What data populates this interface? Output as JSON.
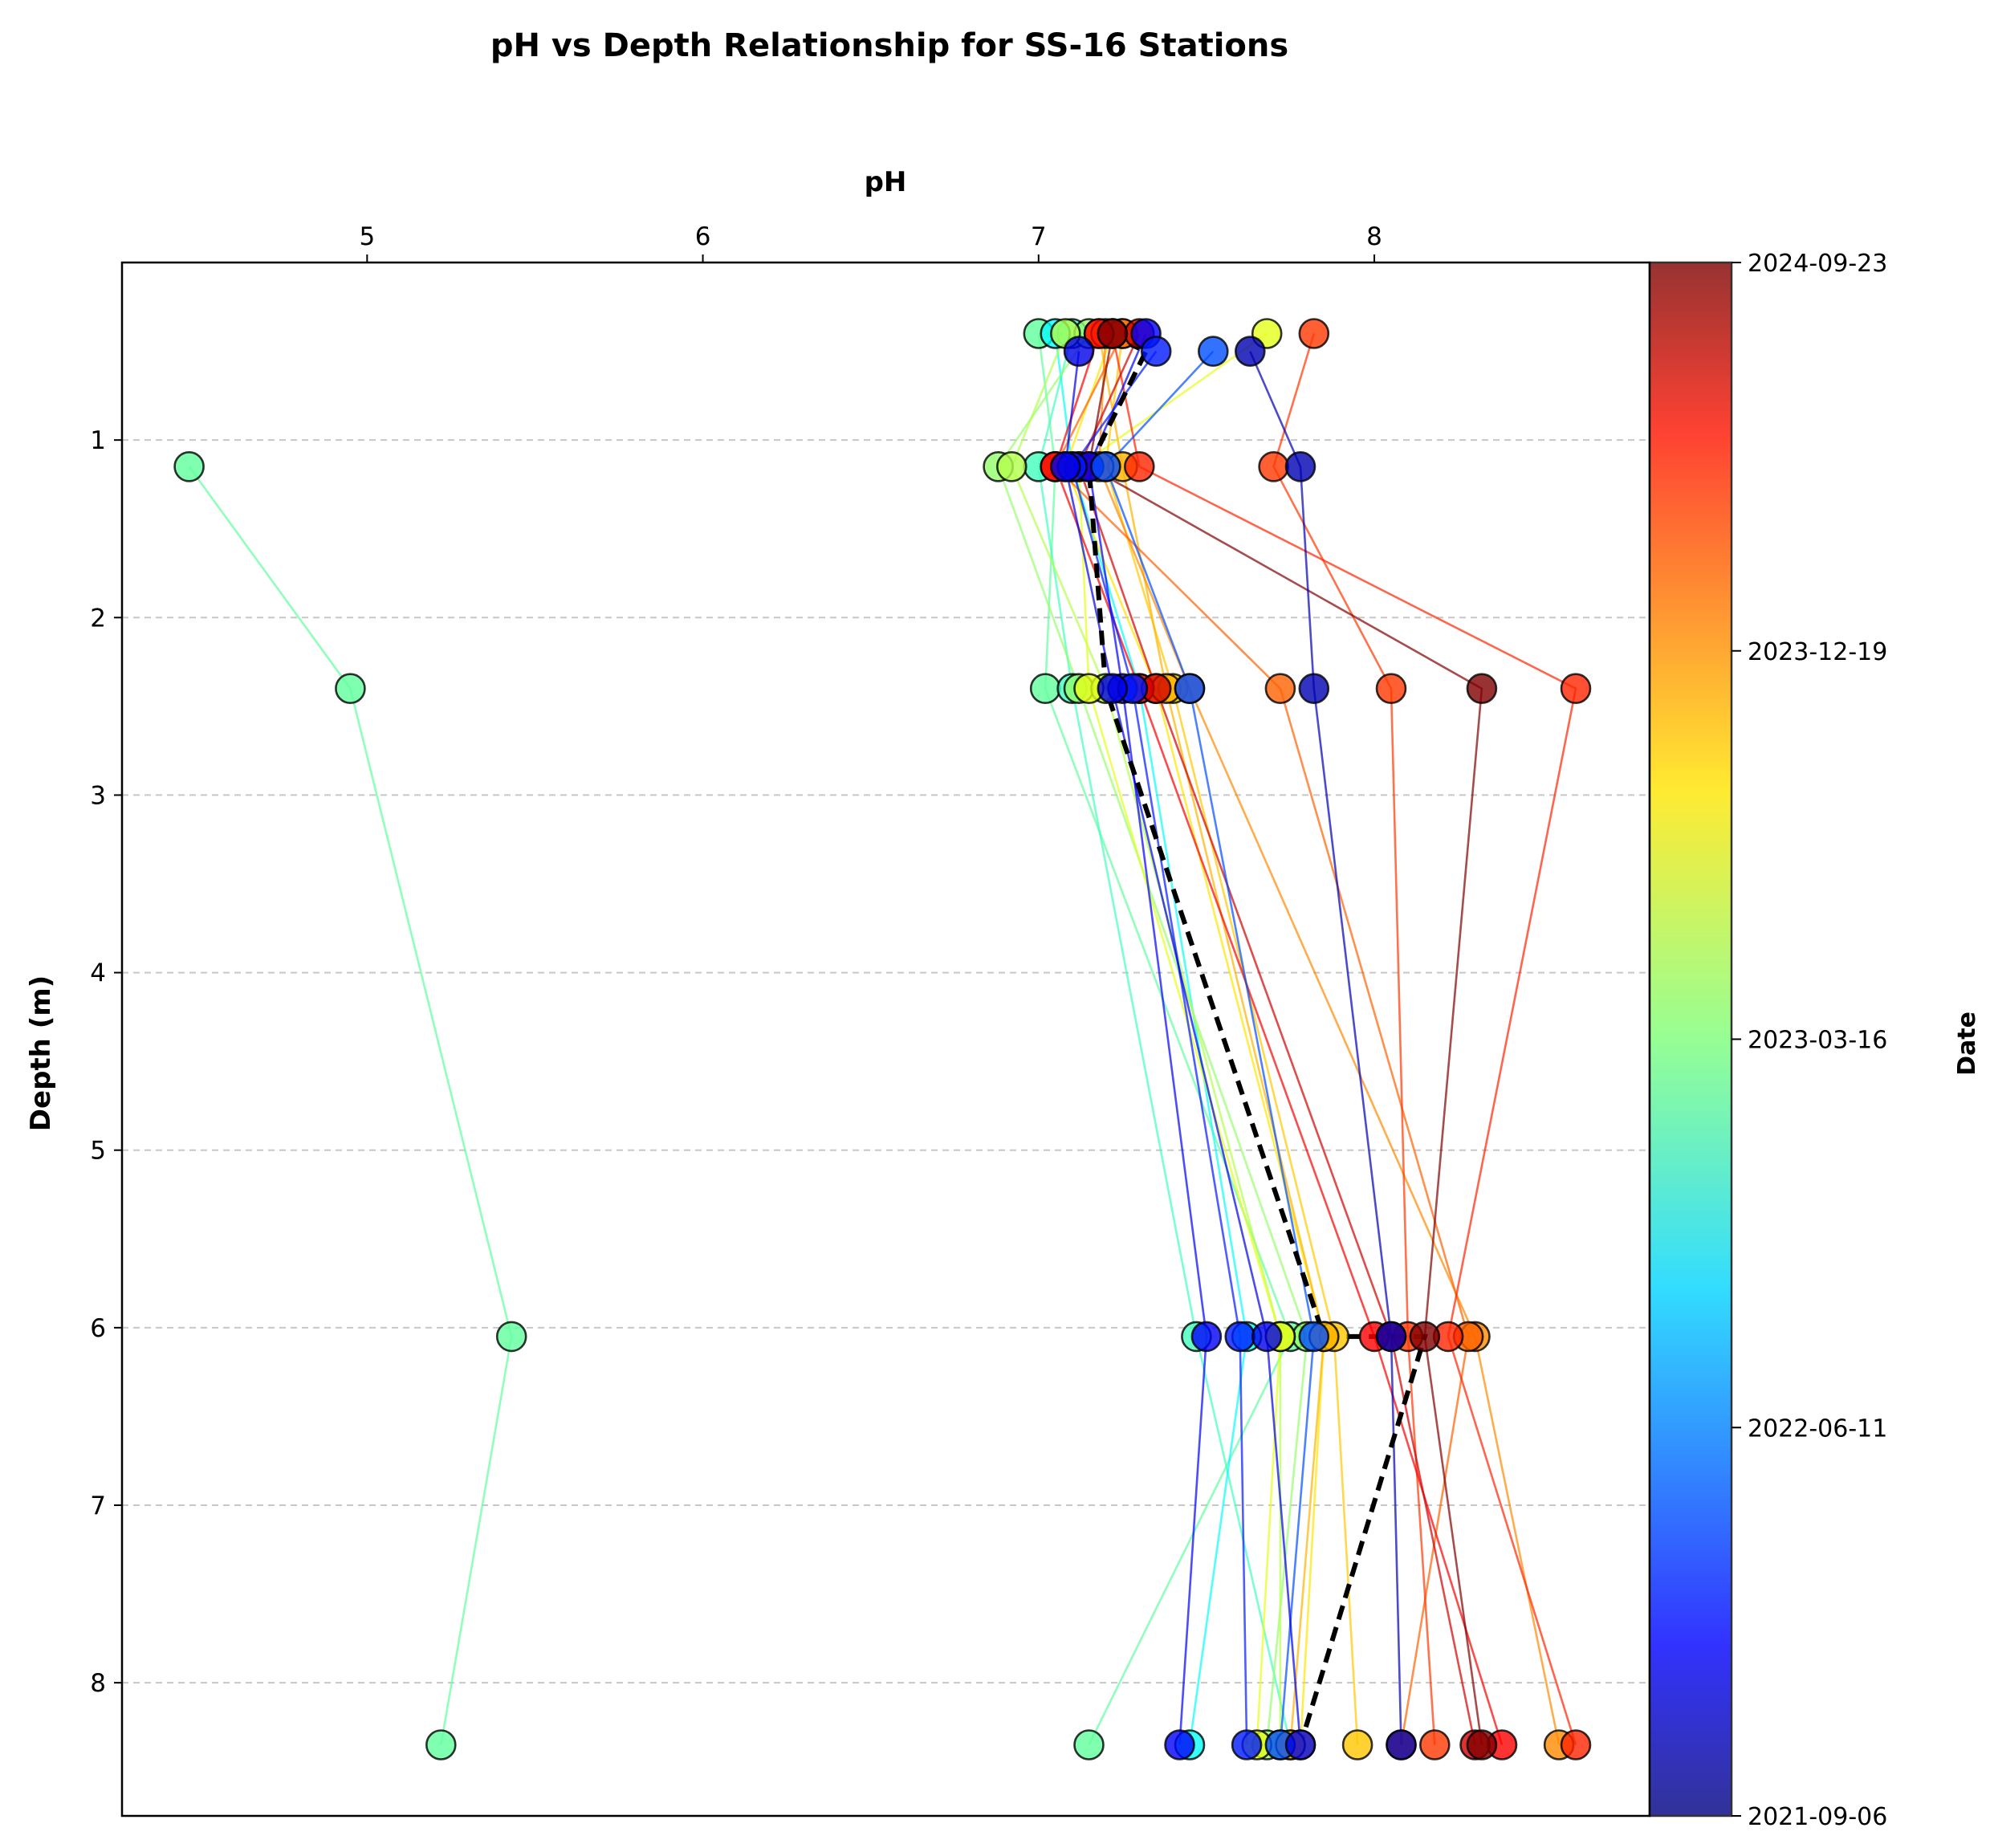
{
  "chart_data": {
    "type": "line",
    "title": "pH vs Depth Relationship for SS-16 Stations",
    "xlabel": "pH",
    "ylabel": "Depth (m)",
    "xlim": [
      4.27,
      8.82
    ],
    "ylim": [
      8.75,
      0.0
    ],
    "x_axis_position": "top",
    "y_axis_inverted": true,
    "x_ticks": [
      5,
      6,
      7,
      8
    ],
    "y_ticks": [
      1,
      2,
      3,
      4,
      5,
      6,
      7,
      8
    ],
    "grid": "horizontal dashed",
    "colorbar": {
      "label": "Date",
      "colormap": "jet",
      "tick_labels": [
        "2021-09-06",
        "2022-06-11",
        "2023-03-16",
        "2023-12-19",
        "2024-09-23"
      ],
      "tick_values": [
        0.0,
        0.25,
        0.5,
        0.75,
        1.0
      ]
    },
    "depth_levels": [
      0.4,
      1.15,
      2.4,
      6.05,
      8.35
    ],
    "mean_profile": {
      "style": "black dashed",
      "points": [
        [
          7.2,
          0.4
        ],
        [
          7.32,
          0.5
        ],
        [
          7.15,
          1.15
        ],
        [
          7.2,
          2.4
        ],
        [
          7.85,
          6.05
        ],
        [
          8.15,
          6.05
        ],
        [
          7.78,
          8.35
        ]
      ]
    },
    "series": [
      {
        "date_fraction": 0.47,
        "points": [
          [
            4.47,
            1.15
          ],
          [
            4.95,
            2.4
          ],
          [
            5.43,
            6.05
          ],
          [
            5.22,
            8.35
          ]
        ]
      },
      {
        "date_fraction": 0.47,
        "points": [
          [
            7.0,
            0.4
          ],
          [
            7.05,
            1.15
          ],
          [
            7.02,
            2.4
          ],
          [
            7.75,
            6.05
          ],
          [
            7.15,
            8.35
          ]
        ]
      },
      {
        "date_fraction": 0.44,
        "points": [
          [
            7.1,
            0.4
          ],
          [
            7.0,
            1.15
          ],
          [
            7.1,
            2.4
          ],
          [
            7.47,
            6.05
          ],
          [
            7.75,
            8.35
          ]
        ]
      },
      {
        "date_fraction": 0.38,
        "points": [
          [
            7.05,
            0.4
          ],
          [
            7.1,
            1.15
          ],
          [
            7.3,
            2.4
          ],
          [
            7.62,
            6.05
          ],
          [
            7.45,
            8.35
          ]
        ]
      },
      {
        "date_fraction": 0.52,
        "points": [
          [
            7.15,
            0.4
          ],
          [
            6.88,
            1.15
          ],
          [
            7.12,
            2.4
          ],
          [
            7.8,
            6.05
          ],
          [
            7.68,
            8.35
          ]
        ]
      },
      {
        "date_fraction": 0.55,
        "points": [
          [
            7.08,
            0.4
          ],
          [
            6.92,
            1.15
          ],
          [
            7.2,
            2.4
          ],
          [
            7.72,
            6.05
          ],
          [
            7.72,
            8.35
          ]
        ]
      },
      {
        "date_fraction": 0.6,
        "points": [
          [
            7.68,
            0.4
          ],
          [
            7.12,
            1.15
          ],
          [
            7.15,
            2.4
          ],
          [
            7.72,
            6.05
          ],
          [
            7.65,
            8.35
          ]
        ]
      },
      {
        "date_fraction": 0.65,
        "points": [
          [
            7.22,
            0.4
          ],
          [
            7.08,
            1.15
          ],
          [
            7.35,
            2.4
          ],
          [
            7.85,
            6.05
          ],
          [
            7.78,
            8.35
          ]
        ]
      },
      {
        "date_fraction": 0.68,
        "points": [
          [
            7.25,
            0.4
          ],
          [
            7.2,
            1.15
          ],
          [
            7.4,
            2.4
          ],
          [
            7.88,
            6.05
          ],
          [
            7.95,
            8.35
          ]
        ]
      },
      {
        "date_fraction": 0.7,
        "points": [
          [
            7.18,
            0.4
          ],
          [
            7.25,
            1.15
          ],
          [
            7.38,
            2.4
          ],
          [
            7.85,
            6.05
          ],
          [
            7.75,
            8.35
          ]
        ]
      },
      {
        "date_fraction": 0.74,
        "points": [
          [
            7.2,
            0.4
          ],
          [
            7.18,
            1.15
          ],
          [
            7.45,
            2.4
          ],
          [
            8.3,
            6.05
          ],
          [
            8.55,
            8.35
          ]
        ]
      },
      {
        "date_fraction": 0.78,
        "points": [
          [
            7.25,
            0.4
          ],
          [
            7.05,
            1.15
          ],
          [
            7.72,
            2.4
          ],
          [
            8.28,
            6.05
          ],
          [
            8.08,
            8.35
          ]
        ]
      },
      {
        "date_fraction": 0.82,
        "points": [
          [
            7.82,
            0.4
          ],
          [
            7.7,
            1.15
          ],
          [
            8.05,
            2.4
          ],
          [
            8.1,
            6.05
          ],
          [
            8.18,
            8.35
          ]
        ]
      },
      {
        "date_fraction": 0.84,
        "points": [
          [
            7.22,
            0.4
          ],
          [
            7.3,
            1.15
          ],
          [
            8.6,
            2.4
          ],
          [
            8.22,
            6.05
          ],
          [
            8.6,
            8.35
          ]
        ]
      },
      {
        "date_fraction": 0.88,
        "points": [
          [
            7.18,
            0.4
          ],
          [
            7.05,
            1.15
          ],
          [
            7.3,
            2.4
          ],
          [
            8.0,
            6.05
          ],
          [
            8.38,
            8.35
          ]
        ]
      },
      {
        "date_fraction": 0.92,
        "points": [
          [
            7.3,
            0.4
          ],
          [
            7.12,
            1.15
          ],
          [
            7.35,
            2.4
          ],
          [
            8.05,
            6.05
          ],
          [
            8.3,
            8.35
          ]
        ]
      },
      {
        "date_fraction": 1.0,
        "points": [
          [
            7.22,
            0.4
          ],
          [
            7.15,
            1.15
          ],
          [
            8.32,
            2.4
          ],
          [
            8.15,
            6.05
          ],
          [
            8.32,
            8.35
          ]
        ]
      },
      {
        "date_fraction": 0.12,
        "points": [
          [
            7.32,
            0.4
          ],
          [
            7.15,
            1.15
          ],
          [
            7.25,
            2.4
          ],
          [
            7.5,
            6.05
          ],
          [
            7.42,
            8.35
          ]
        ]
      },
      {
        "date_fraction": 0.15,
        "points": [
          [
            7.35,
            0.5
          ],
          [
            7.1,
            1.15
          ],
          [
            7.28,
            2.4
          ],
          [
            7.6,
            6.05
          ],
          [
            7.62,
            8.35
          ]
        ]
      },
      {
        "date_fraction": 0.05,
        "points": [
          [
            7.63,
            0.5
          ],
          [
            7.78,
            1.15
          ],
          [
            7.82,
            2.4
          ],
          [
            8.05,
            6.05
          ],
          [
            8.08,
            8.35
          ]
        ]
      },
      {
        "date_fraction": 0.2,
        "points": [
          [
            7.52,
            0.5
          ],
          [
            7.2,
            1.15
          ],
          [
            7.45,
            2.4
          ],
          [
            7.82,
            6.05
          ],
          [
            7.72,
            8.35
          ]
        ]
      },
      {
        "date_fraction": 0.1,
        "points": [
          [
            7.12,
            0.5
          ],
          [
            7.08,
            1.15
          ],
          [
            7.22,
            2.4
          ],
          [
            7.68,
            6.05
          ],
          [
            7.78,
            8.35
          ]
        ]
      }
    ]
  }
}
